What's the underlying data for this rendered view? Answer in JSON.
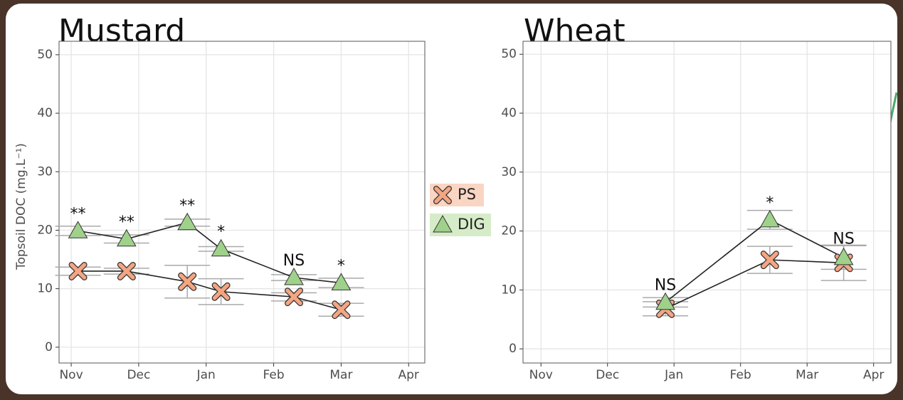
{
  "chart_data": [
    {
      "type": "line",
      "title": "Mustard",
      "y_label": "Topsoil DOC (mg.L⁻¹)",
      "xlim": [
        -0.18,
        5.24
      ],
      "ylim": [
        -2.7,
        52.3
      ],
      "xticks": [
        {
          "value": 0,
          "label": "Nov"
        },
        {
          "value": 1,
          "label": "Dec"
        },
        {
          "value": 2,
          "label": "Jan"
        },
        {
          "value": 3,
          "label": "Feb"
        },
        {
          "value": 4,
          "label": "Mar"
        },
        {
          "value": 5,
          "label": "Apr"
        }
      ],
      "yticks": [
        0,
        10,
        20,
        30,
        40,
        50
      ],
      "grid": true,
      "series": [
        {
          "name": "PS",
          "color": "#f4a582",
          "marker": "x",
          "x": [
            0.1,
            0.82,
            1.72,
            2.22,
            3.3,
            4.0
          ],
          "values": [
            13.0,
            13.0,
            11.2,
            9.5,
            8.6,
            6.4
          ],
          "errors": [
            0.7,
            0.5,
            2.8,
            2.2,
            0.7,
            1.1
          ]
        },
        {
          "name": "DIG",
          "color": "#9fd18b",
          "marker": "triangle",
          "x": [
            0.1,
            0.82,
            1.72,
            2.22,
            3.3,
            4.0
          ],
          "values": [
            19.9,
            18.5,
            21.3,
            16.8,
            11.9,
            11.0
          ],
          "errors": [
            0.8,
            0.7,
            0.6,
            0.4,
            0.5,
            0.8
          ]
        }
      ],
      "annotations": [
        "**",
        "**",
        "**",
        "*",
        "NS",
        "*"
      ]
    },
    {
      "type": "line",
      "title": "Wheat",
      "xlim": [
        -0.27,
        5.26
      ],
      "ylim": [
        -2.4,
        52.2
      ],
      "xticks": [
        {
          "value": 0,
          "label": "Nov"
        },
        {
          "value": 1,
          "label": "Dec"
        },
        {
          "value": 2,
          "label": "Jan"
        },
        {
          "value": 3,
          "label": "Feb"
        },
        {
          "value": 4,
          "label": "Mar"
        },
        {
          "value": 5,
          "label": "Apr"
        }
      ],
      "yticks": [
        0,
        10,
        20,
        30,
        40,
        50
      ],
      "grid": true,
      "series": [
        {
          "color": "#f4a582",
          "marker": "x",
          "x": [
            1.87,
            3.44,
            4.55
          ],
          "values": [
            6.8,
            15.1,
            14.6
          ],
          "errors": [
            1.2,
            2.3,
            3.0
          ]
        },
        {
          "color": "#9fd18b",
          "marker": "triangle",
          "x": [
            1.87,
            3.44,
            4.55
          ],
          "values": [
            7.9,
            21.9,
            15.5
          ],
          "errors": [
            0.8,
            1.6,
            2.0
          ]
        }
      ],
      "annotations": [
        "NS",
        "*",
        "NS"
      ]
    }
  ]
}
